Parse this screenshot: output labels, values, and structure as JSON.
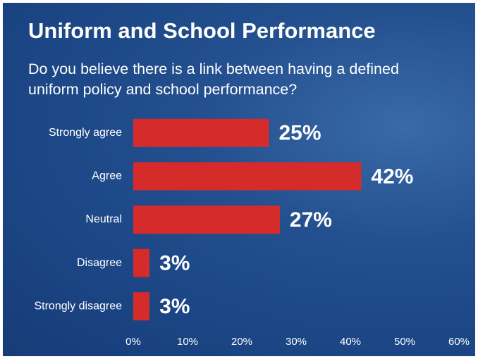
{
  "chart_data": {
    "type": "bar",
    "orientation": "horizontal",
    "title": "Uniform and School Performance",
    "subtitle": "Do you believe there is a link between having a defined uniform policy and school performance?",
    "categories": [
      "Strongly agree",
      "Agree",
      "Neutral",
      "Disagree",
      "Strongly disagree"
    ],
    "values": [
      25,
      42,
      27,
      3,
      3
    ],
    "value_labels": [
      "25%",
      "42%",
      "27%",
      "3%",
      "3%"
    ],
    "color": "#d62b2b",
    "xlim": [
      0,
      60
    ],
    "xticks": [
      {
        "value": 0,
        "label": "0%"
      },
      {
        "value": 10,
        "label": "10%"
      },
      {
        "value": 20,
        "label": "20%"
      },
      {
        "value": 30,
        "label": "30%"
      },
      {
        "value": 40,
        "label": "40%"
      },
      {
        "value": 50,
        "label": "50%"
      },
      {
        "value": 60,
        "label": "60%"
      }
    ],
    "grid": false
  }
}
